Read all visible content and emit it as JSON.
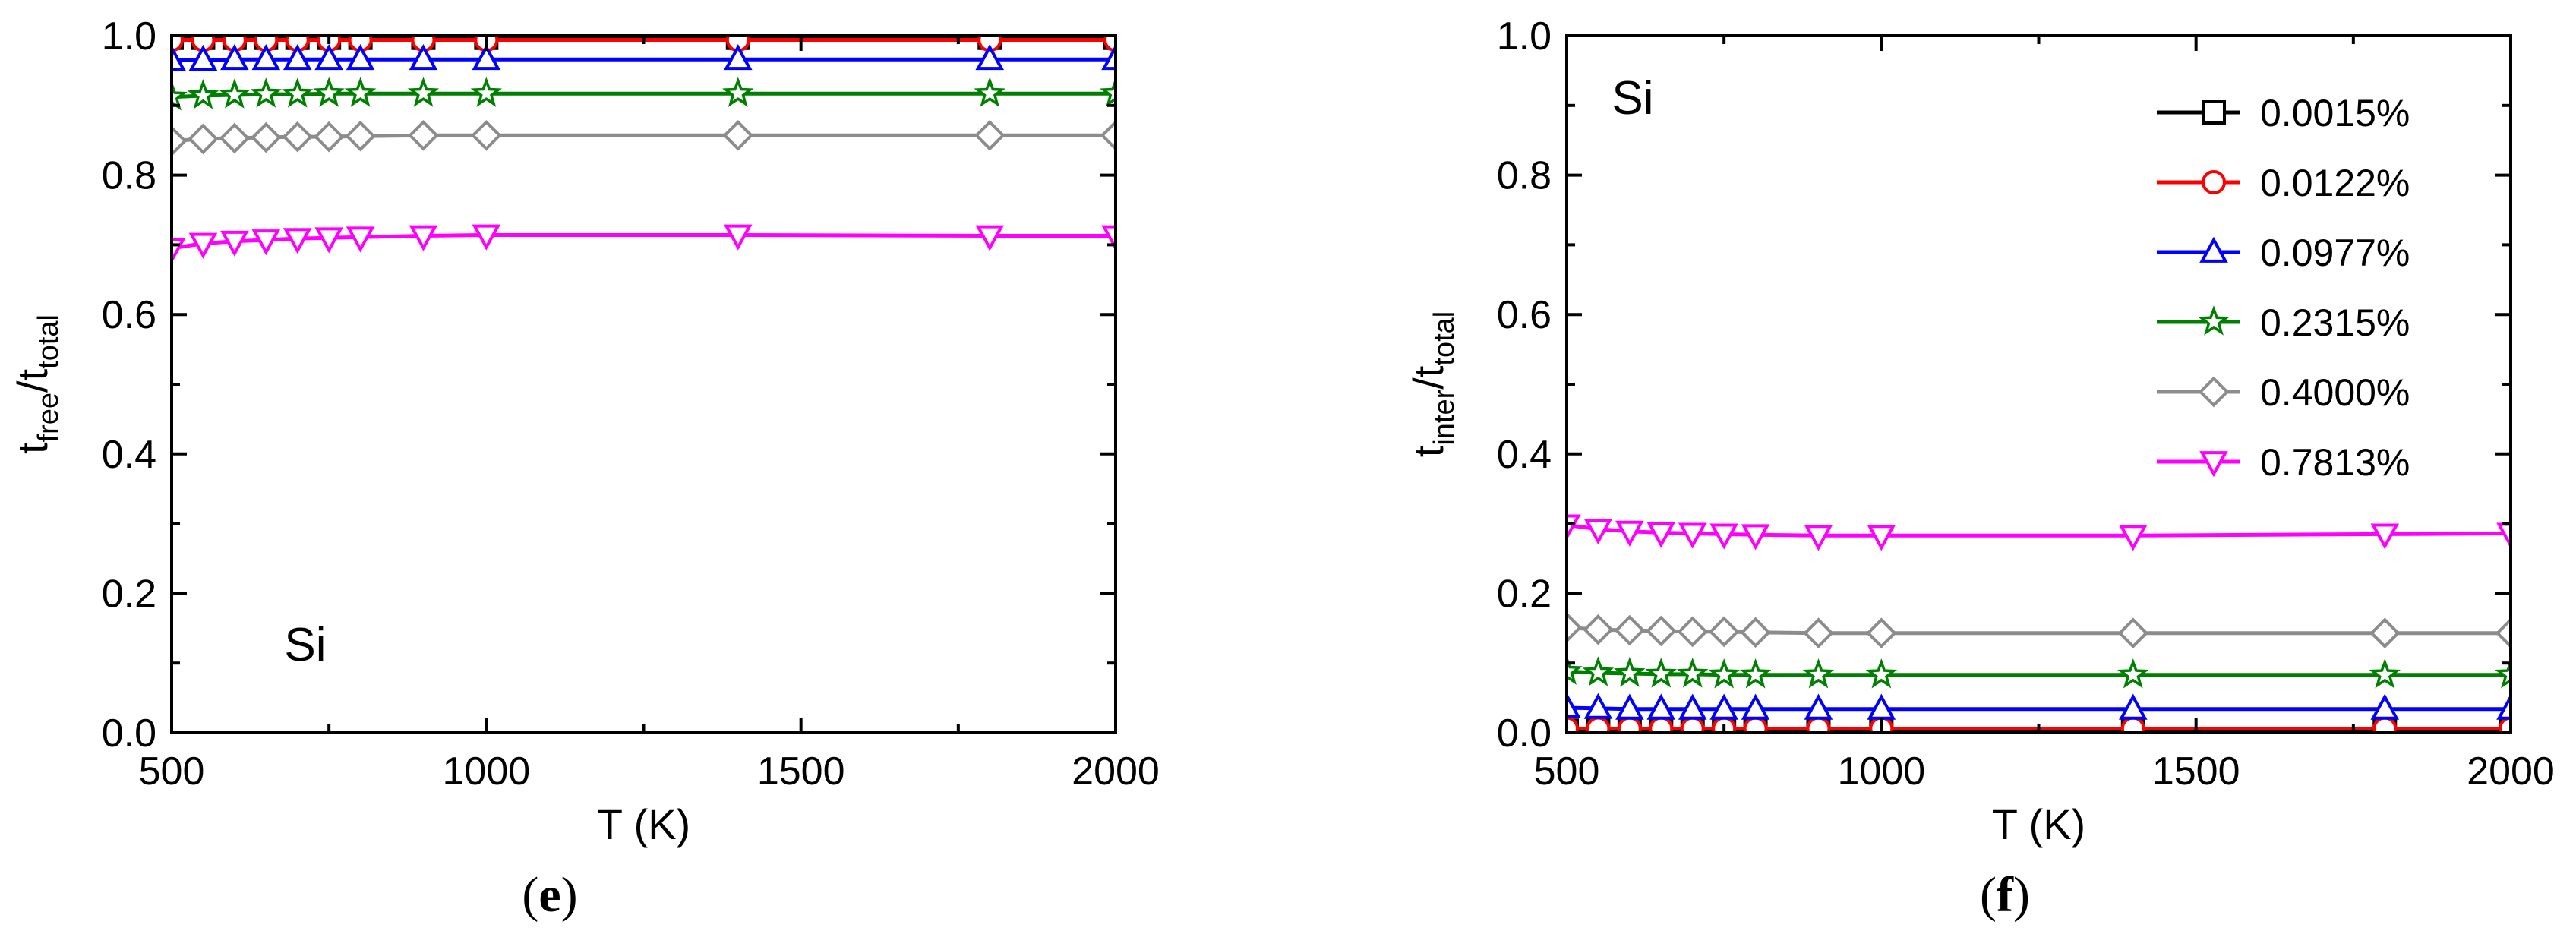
{
  "colors": {
    "0.0015%": "#000000",
    "0.0122%": "#ff0000",
    "0.0977%": "#0000ff",
    "0.2315%": "#008000",
    "0.4000%": "#8c8c8c",
    "0.7813%": "#ff00ff"
  },
  "chart_data": [
    {
      "type": "line",
      "panel_label": "e",
      "annotation": "Si",
      "xlabel": "T (K)",
      "ylabel_main": "t",
      "ylabel_sub1": "free",
      "ylabel_mid": "/t",
      "ylabel_sub2": "total",
      "xlim": [
        500,
        2000
      ],
      "ylim": [
        0.0,
        1.0
      ],
      "x_ticks": [
        500,
        1000,
        1500,
        2000
      ],
      "y_ticks": [
        "0.0",
        "0.2",
        "0.4",
        "0.6",
        "0.8",
        "1.0"
      ],
      "grid": false,
      "x": [
        500,
        550,
        600,
        650,
        700,
        750,
        800,
        900,
        1000,
        1400,
        1800,
        2000
      ],
      "series": [
        {
          "name": "0.0015%",
          "marker": "square",
          "values": [
            0.997,
            0.997,
            0.997,
            0.997,
            0.997,
            0.997,
            0.997,
            0.997,
            0.997,
            0.997,
            0.997,
            0.997
          ]
        },
        {
          "name": "0.0122%",
          "marker": "circle",
          "values": [
            0.994,
            0.994,
            0.994,
            0.994,
            0.994,
            0.994,
            0.994,
            0.994,
            0.994,
            0.994,
            0.994,
            0.994
          ]
        },
        {
          "name": "0.0977%",
          "marker": "triangle-up",
          "values": [
            0.965,
            0.965,
            0.966,
            0.966,
            0.966,
            0.966,
            0.966,
            0.966,
            0.966,
            0.966,
            0.966,
            0.966
          ]
        },
        {
          "name": "0.2315%",
          "marker": "star",
          "values": [
            0.912,
            0.914,
            0.915,
            0.916,
            0.916,
            0.917,
            0.917,
            0.917,
            0.917,
            0.917,
            0.917,
            0.917
          ]
        },
        {
          "name": "0.4000%",
          "marker": "diamond",
          "values": [
            0.849,
            0.852,
            0.853,
            0.854,
            0.855,
            0.855,
            0.856,
            0.857,
            0.857,
            0.857,
            0.857,
            0.857
          ]
        },
        {
          "name": "0.7813%",
          "marker": "triangle-down",
          "values": [
            0.695,
            0.702,
            0.705,
            0.707,
            0.709,
            0.71,
            0.711,
            0.713,
            0.714,
            0.714,
            0.713,
            0.713
          ]
        }
      ]
    },
    {
      "type": "line",
      "panel_label": "f",
      "annotation": "Si",
      "xlabel": "T (K)",
      "ylabel_main": "t",
      "ylabel_sub1": "inter",
      "ylabel_mid": "/t",
      "ylabel_sub2": "total",
      "xlim": [
        500,
        2000
      ],
      "ylim": [
        0.0,
        1.0
      ],
      "x_ticks": [
        500,
        1000,
        1500,
        2000
      ],
      "y_ticks": [
        "0.0",
        "0.2",
        "0.4",
        "0.6",
        "0.8",
        "1.0"
      ],
      "grid": false,
      "legend": "top-right",
      "x": [
        500,
        550,
        600,
        650,
        700,
        750,
        800,
        900,
        1000,
        1400,
        1800,
        2000
      ],
      "series": [
        {
          "name": "0.0015%",
          "marker": "square",
          "values": [
            0.003,
            0.003,
            0.003,
            0.003,
            0.003,
            0.003,
            0.003,
            0.003,
            0.003,
            0.003,
            0.003,
            0.003
          ]
        },
        {
          "name": "0.0122%",
          "marker": "circle",
          "values": [
            0.006,
            0.006,
            0.006,
            0.006,
            0.006,
            0.006,
            0.006,
            0.006,
            0.006,
            0.006,
            0.006,
            0.006
          ]
        },
        {
          "name": "0.0977%",
          "marker": "triangle-up",
          "values": [
            0.036,
            0.035,
            0.034,
            0.034,
            0.034,
            0.034,
            0.034,
            0.034,
            0.034,
            0.034,
            0.034,
            0.034
          ]
        },
        {
          "name": "0.2315%",
          "marker": "star",
          "values": [
            0.088,
            0.086,
            0.085,
            0.084,
            0.084,
            0.083,
            0.083,
            0.083,
            0.083,
            0.083,
            0.083,
            0.083
          ]
        },
        {
          "name": "0.4000%",
          "marker": "diamond",
          "values": [
            0.151,
            0.148,
            0.147,
            0.146,
            0.145,
            0.145,
            0.144,
            0.143,
            0.143,
            0.143,
            0.143,
            0.143
          ]
        },
        {
          "name": "0.7813%",
          "marker": "triangle-down",
          "values": [
            0.298,
            0.292,
            0.289,
            0.287,
            0.286,
            0.285,
            0.284,
            0.283,
            0.283,
            0.283,
            0.285,
            0.286
          ]
        }
      ]
    }
  ]
}
